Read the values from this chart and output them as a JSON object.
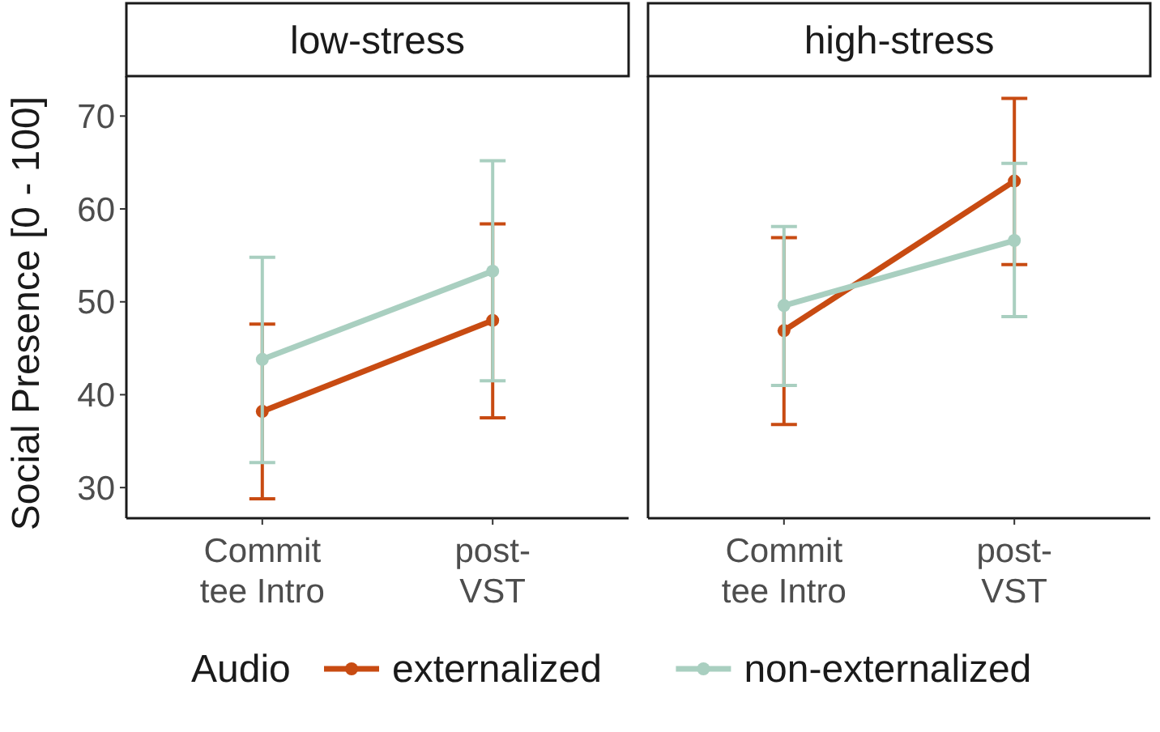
{
  "chart_data": [
    {
      "type": "line",
      "title": "low-stress",
      "ylabel": "Social Presence [0 - 100]",
      "legend_title": "Audio",
      "categories": [
        "Commit\ntee Intro",
        "post-\nVST"
      ],
      "ylim": [
        26.7,
        74.3
      ],
      "yticks": [
        30,
        40,
        50,
        60,
        70
      ],
      "legend": "bottom",
      "marker": "circle",
      "series": [
        {
          "name": "externalized",
          "color": "#c84b12",
          "values": [
            38.2,
            48.0
          ],
          "errors": [
            [
              28.8,
              47.6
            ],
            [
              37.5,
              58.4
            ]
          ]
        },
        {
          "name": "non-externalized",
          "color": "#a9cfc0",
          "values": [
            43.8,
            53.3
          ],
          "errors": [
            [
              32.7,
              54.8
            ],
            [
              41.5,
              65.2
            ]
          ]
        }
      ]
    },
    {
      "type": "line",
      "title": "high-stress",
      "categories": [
        "Commit\ntee Intro",
        "post-\nVST"
      ],
      "ylim": [
        26.7,
        74.3
      ],
      "yticks": [
        30,
        40,
        50,
        60,
        70
      ],
      "tick_labels": "x",
      "legend": "bottom",
      "marker": "circle",
      "series": [
        {
          "name": "externalized",
          "color": "#c84b12",
          "values": [
            46.9,
            63.0
          ],
          "errors": [
            [
              36.8,
              56.9
            ],
            [
              54.0,
              71.9
            ]
          ]
        },
        {
          "name": "non-externalized",
          "color": "#a9cfc0",
          "values": [
            49.6,
            56.6
          ],
          "errors": [
            [
              41.0,
              58.1
            ],
            [
              48.4,
              64.9
            ]
          ]
        }
      ]
    }
  ]
}
